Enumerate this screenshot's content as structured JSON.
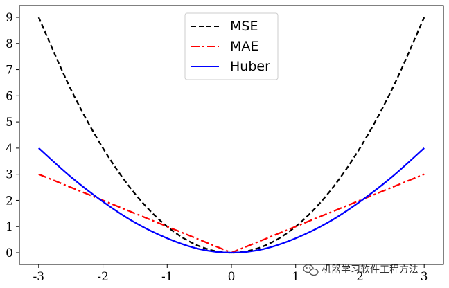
{
  "chart_data": {
    "type": "line",
    "x_range": [
      -3,
      3
    ],
    "xlim": [
      -3.3,
      3.3
    ],
    "ylim": [
      -0.45,
      9.45
    ],
    "x_ticks": [
      -3,
      -2,
      -1,
      0,
      1,
      2,
      3
    ],
    "x_tick_labels": [
      "-3",
      "-2",
      "-1",
      "0",
      "1",
      "2",
      "3"
    ],
    "y_ticks": [
      0,
      1,
      2,
      3,
      4,
      5,
      6,
      7,
      8,
      9
    ],
    "y_tick_labels": [
      "0",
      "1",
      "2",
      "3",
      "4",
      "5",
      "6",
      "7",
      "8",
      "9"
    ],
    "series": [
      {
        "name": "MSE",
        "color": "#000000",
        "style": "dashed",
        "x": [
          -3,
          -2.5,
          -2,
          -1.5,
          -1,
          -0.5,
          0,
          0.5,
          1,
          1.5,
          2,
          2.5,
          3
        ],
        "y": [
          9,
          6.25,
          4,
          2.25,
          1,
          0.25,
          0,
          0.25,
          1,
          2.25,
          4,
          6.25,
          9
        ]
      },
      {
        "name": "MAE",
        "color": "#ff0000",
        "style": "dashdot",
        "x": [
          -3,
          -2,
          -1,
          0,
          1,
          2,
          3
        ],
        "y": [
          3,
          2,
          1,
          0,
          1,
          2,
          3
        ]
      },
      {
        "name": "Huber",
        "color": "#0000ff",
        "style": "solid",
        "x": [
          -3,
          -2.5,
          -2,
          -1.5,
          -1,
          -0.5,
          0,
          0.5,
          1,
          1.5,
          2,
          2.5,
          3
        ],
        "y": [
          4,
          2.9,
          1.95,
          1.15,
          0.55,
          0.14,
          0,
          0.14,
          0.55,
          1.15,
          1.95,
          2.9,
          4
        ]
      }
    ],
    "legend": [
      "MSE",
      "MAE",
      "Huber"
    ],
    "legend_position": "top-center",
    "grid": false
  },
  "watermark": {
    "icon": "wechat-icon",
    "text": "机器学习软件工程方法"
  }
}
